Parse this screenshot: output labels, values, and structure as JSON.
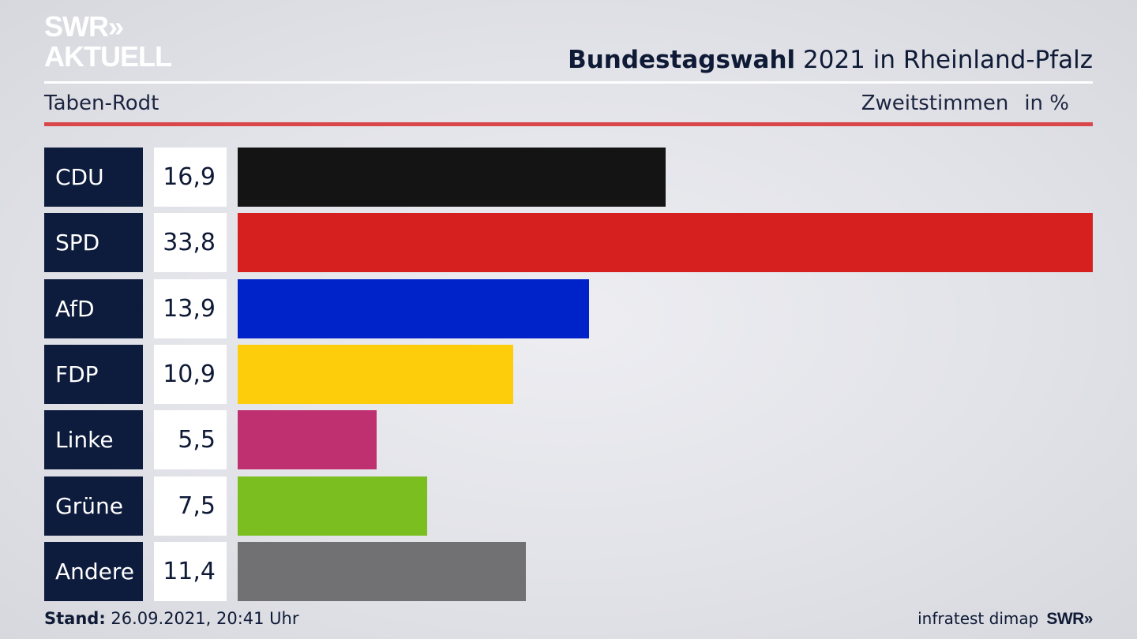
{
  "logo": {
    "line1": "SWR»",
    "line2": "AKTUELL"
  },
  "header": {
    "title_bold": "Bundestagswahl",
    "title_rest": " 2021 in Rheinland-Pfalz",
    "region": "Taben-Rodt",
    "vote_type": "Zweitstimmen",
    "unit": "in %"
  },
  "chart_data": {
    "type": "bar",
    "categories": [
      "CDU",
      "SPD",
      "AfD",
      "FDP",
      "Linke",
      "Grüne",
      "Andere"
    ],
    "values": [
      16.9,
      33.8,
      13.9,
      10.9,
      5.5,
      7.5,
      11.4
    ],
    "value_labels": [
      "16,9",
      "33,8",
      "13,9",
      "10,9",
      "5,5",
      "7,5",
      "11,4"
    ],
    "colors": [
      "#141414",
      "#d62020",
      "#0022c9",
      "#fdcc0a",
      "#bf3071",
      "#7abf1f",
      "#717174"
    ],
    "orientation": "horizontal",
    "xlim": [
      0,
      33.8
    ]
  },
  "footer": {
    "stand_label": "Stand:",
    "stand_value": " 26.09.2021, 20:41 Uhr",
    "source": "infratest dimap",
    "brand": "SWR»"
  }
}
